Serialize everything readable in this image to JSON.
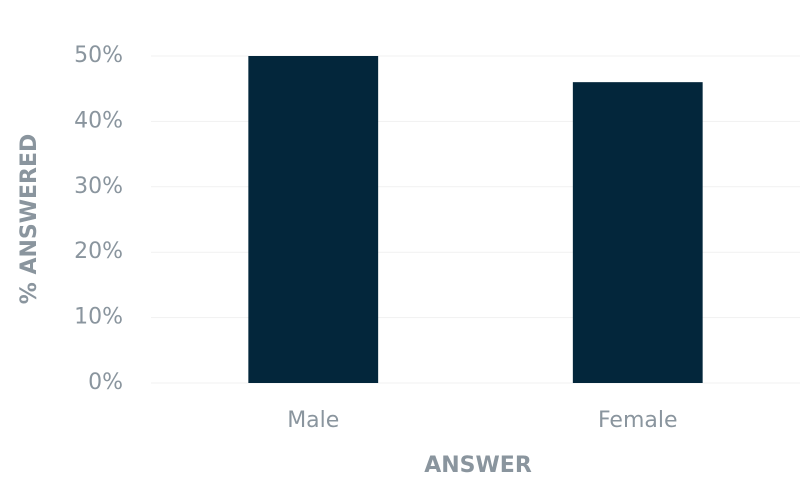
{
  "chart_data": {
    "type": "bar",
    "x_label": "ANSWER",
    "y_label": "% ANSWERED",
    "categories": [
      "Male",
      "Female"
    ],
    "values": [
      50,
      46
    ],
    "color": "#03263b",
    "ylim": [
      0,
      50
    ],
    "yticks": [
      {
        "value": 0,
        "label": "0%"
      },
      {
        "value": 10,
        "label": "10%"
      },
      {
        "value": 20,
        "label": "20%"
      },
      {
        "value": 30,
        "label": "30%"
      },
      {
        "value": 40,
        "label": "40%"
      },
      {
        "value": 50,
        "label": "50%"
      }
    ],
    "grid": true
  }
}
